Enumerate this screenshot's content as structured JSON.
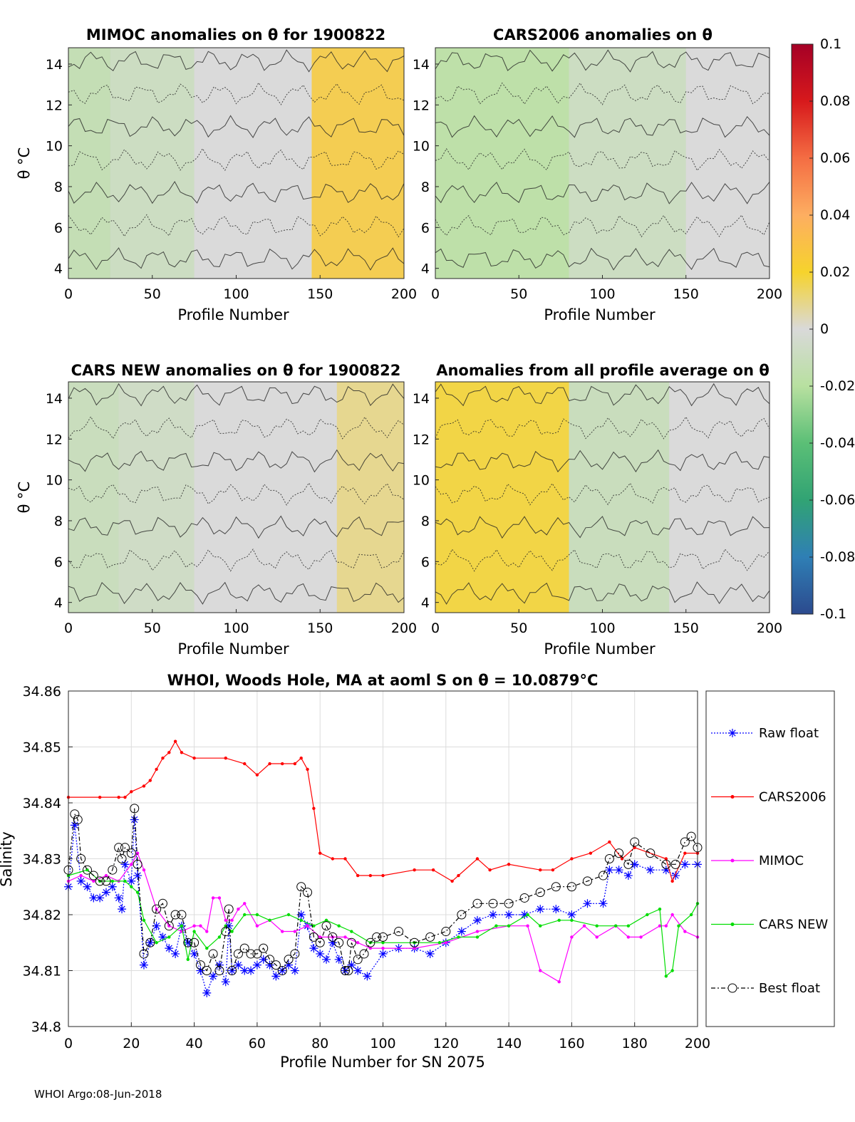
{
  "figure": {
    "footer": "WHOI Argo:08-Jun-2018"
  },
  "colorbar": {
    "ticks": [
      "0.1",
      "0.08",
      "0.06",
      "0.04",
      "0.02",
      "0",
      "-0.02",
      "-0.04",
      "-0.06",
      "-0.08",
      "-0.1"
    ],
    "range": [
      -0.1,
      0.1
    ],
    "colors": [
      "#a50026",
      "#d7191c",
      "#f46d43",
      "#fdae61",
      "#f6d32c",
      "#d9d9d9",
      "#b8e0a0",
      "#5bbf76",
      "#31a374",
      "#2f7fb5",
      "#2c4a8e"
    ]
  },
  "chart_data": [
    {
      "type": "heatmap",
      "title": "MIMOC anomalies on θ  for 1900822",
      "xlabel": "Profile Number",
      "ylabel": "θ °C",
      "xticks": [
        "0",
        "50",
        "100",
        "150",
        "200"
      ],
      "yticks": [
        "4",
        "6",
        "8",
        "10",
        "12",
        "14"
      ],
      "xlim": [
        0,
        200
      ],
      "ylim": [
        3.5,
        14.8
      ],
      "columns": [
        {
          "x0": 0,
          "x1": 25,
          "anomaly": -0.015
        },
        {
          "x0": 25,
          "x1": 75,
          "anomaly": -0.01
        },
        {
          "x0": 75,
          "x1": 145,
          "anomaly": 0.0
        },
        {
          "x0": 145,
          "x1": 200,
          "anomaly": 0.025
        }
      ]
    },
    {
      "type": "heatmap",
      "title": "CARS2006 anomalies on θ",
      "xlabel": "Profile Number",
      "ylabel": "",
      "xticks": [
        "0",
        "50",
        "100",
        "150",
        "200"
      ],
      "yticks": [
        "4",
        "6",
        "8",
        "10",
        "12",
        "14"
      ],
      "xlim": [
        0,
        200
      ],
      "ylim": [
        3.5,
        14.8
      ],
      "columns": [
        {
          "x0": 0,
          "x1": 80,
          "anomaly": -0.02
        },
        {
          "x0": 80,
          "x1": 150,
          "anomaly": -0.01
        },
        {
          "x0": 150,
          "x1": 200,
          "anomaly": 0.0
        }
      ]
    },
    {
      "type": "heatmap",
      "title": "CARS NEW anomalies on θ for 1900822",
      "xlabel": "Profile Number",
      "ylabel": "θ °C",
      "xticks": [
        "0",
        "50",
        "100",
        "150",
        "200"
      ],
      "yticks": [
        "4",
        "6",
        "8",
        "10",
        "12",
        "14"
      ],
      "xlim": [
        0,
        200
      ],
      "ylim": [
        3.5,
        14.8
      ],
      "columns": [
        {
          "x0": 0,
          "x1": 30,
          "anomaly": -0.012
        },
        {
          "x0": 30,
          "x1": 75,
          "anomaly": -0.008
        },
        {
          "x0": 75,
          "x1": 160,
          "anomaly": 0.0
        },
        {
          "x0": 160,
          "x1": 200,
          "anomaly": 0.01
        }
      ]
    },
    {
      "type": "heatmap",
      "title": "Anomalies from all profile average on θ",
      "xlabel": "Profile Number",
      "ylabel": "",
      "xticks": [
        "0",
        "50",
        "100",
        "150",
        "200"
      ],
      "yticks": [
        "4",
        "6",
        "8",
        "10",
        "12",
        "14"
      ],
      "xlim": [
        0,
        200
      ],
      "ylim": [
        3.5,
        14.8
      ],
      "columns": [
        {
          "x0": 0,
          "x1": 80,
          "anomaly": 0.02
        },
        {
          "x0": 80,
          "x1": 140,
          "anomaly": -0.012
        },
        {
          "x0": 140,
          "x1": 200,
          "anomaly": 0.0
        }
      ]
    },
    {
      "type": "line",
      "title": "WHOI, Woods Hole, MA at aoml S on θ = 10.0879°C",
      "xlabel": "Profile Number for SN 2075",
      "ylabel": "Salinity",
      "xlim": [
        0,
        200
      ],
      "ylim": [
        34.8,
        34.86
      ],
      "xticks": [
        "0",
        "20",
        "40",
        "60",
        "80",
        "100",
        "120",
        "140",
        "160",
        "180",
        "200"
      ],
      "yticks": [
        "34.8",
        "34.81",
        "34.82",
        "34.83",
        "34.84",
        "34.85",
        "34.86"
      ],
      "grid": true,
      "legend_position": "right-outside",
      "series": [
        {
          "name": "Raw float",
          "color": "#0000ff",
          "marker": "asterisk",
          "x": [
            0,
            2,
            4,
            6,
            8,
            10,
            12,
            14,
            16,
            17,
            18,
            20,
            21,
            22,
            24,
            26,
            28,
            30,
            32,
            34,
            36,
            38,
            40,
            42,
            44,
            46,
            48,
            50,
            51,
            52,
            54,
            56,
            58,
            60,
            62,
            64,
            66,
            68,
            70,
            72,
            74,
            76,
            78,
            80,
            82,
            84,
            86,
            88,
            90,
            92,
            95,
            100,
            105,
            110,
            115,
            120,
            125,
            130,
            135,
            140,
            145,
            150,
            155,
            160,
            165,
            170,
            172,
            175,
            178,
            180,
            185,
            190,
            193,
            196,
            200
          ],
          "y": [
            34.825,
            34.836,
            34.826,
            34.825,
            34.823,
            34.823,
            34.824,
            34.825,
            34.823,
            34.821,
            34.829,
            34.826,
            34.837,
            34.827,
            34.811,
            34.815,
            34.818,
            34.816,
            34.814,
            34.813,
            34.818,
            34.815,
            34.813,
            34.81,
            34.806,
            34.809,
            34.811,
            34.808,
            34.818,
            34.81,
            34.811,
            34.81,
            34.81,
            34.811,
            34.812,
            34.811,
            34.809,
            34.81,
            34.811,
            34.81,
            34.82,
            34.818,
            34.814,
            34.813,
            34.812,
            34.815,
            34.812,
            34.81,
            34.811,
            34.81,
            34.809,
            34.813,
            34.814,
            34.814,
            34.813,
            34.815,
            34.817,
            34.819,
            34.82,
            34.82,
            34.82,
            34.821,
            34.821,
            34.82,
            34.822,
            34.822,
            34.828,
            34.828,
            34.827,
            34.829,
            34.828,
            34.828,
            34.827,
            34.829,
            34.829
          ]
        },
        {
          "name": "CARS2006",
          "color": "#ff0000",
          "marker": "dot",
          "x": [
            0,
            10,
            16,
            18,
            20,
            24,
            26,
            28,
            30,
            32,
            34,
            36,
            40,
            50,
            56,
            60,
            64,
            68,
            72,
            74,
            76,
            78,
            80,
            84,
            88,
            92,
            96,
            100,
            110,
            116,
            122,
            124,
            130,
            134,
            140,
            150,
            154,
            160,
            166,
            172,
            176,
            180,
            190,
            192,
            196,
            200
          ],
          "y": [
            34.841,
            34.841,
            34.841,
            34.841,
            34.842,
            34.843,
            34.844,
            34.846,
            34.848,
            34.849,
            34.851,
            34.849,
            34.848,
            34.848,
            34.847,
            34.845,
            34.847,
            34.847,
            34.847,
            34.848,
            34.846,
            34.839,
            34.831,
            34.83,
            34.83,
            34.827,
            34.827,
            34.827,
            34.828,
            34.828,
            34.826,
            34.827,
            34.83,
            34.828,
            34.829,
            34.828,
            34.828,
            34.83,
            34.831,
            34.833,
            34.83,
            34.832,
            34.83,
            34.826,
            34.831,
            34.831
          ]
        },
        {
          "name": "MIMOC",
          "color": "#ff00ff",
          "marker": "dot",
          "x": [
            0,
            4,
            8,
            12,
            16,
            20,
            22,
            24,
            28,
            32,
            36,
            40,
            42,
            44,
            46,
            48,
            50,
            52,
            54,
            56,
            60,
            64,
            68,
            72,
            76,
            80,
            84,
            88,
            92,
            96,
            100,
            110,
            120,
            130,
            140,
            146,
            150,
            156,
            160,
            164,
            168,
            174,
            178,
            182,
            188,
            190,
            192,
            196,
            200
          ],
          "y": [
            34.826,
            34.827,
            34.826,
            34.827,
            34.826,
            34.829,
            34.831,
            34.828,
            34.821,
            34.818,
            34.817,
            34.818,
            34.818,
            34.817,
            34.823,
            34.823,
            34.819,
            34.819,
            34.821,
            34.822,
            34.818,
            34.819,
            34.817,
            34.817,
            34.818,
            34.816,
            34.816,
            34.816,
            34.815,
            34.814,
            34.814,
            34.814,
            34.815,
            34.817,
            34.818,
            34.818,
            34.81,
            34.808,
            34.816,
            34.818,
            34.816,
            34.818,
            34.816,
            34.816,
            34.818,
            34.818,
            34.82,
            34.817,
            34.816
          ]
        },
        {
          "name": "CARS NEW",
          "color": "#00dd00",
          "marker": "dot",
          "x": [
            0,
            6,
            10,
            14,
            18,
            20,
            22,
            24,
            28,
            32,
            36,
            38,
            40,
            44,
            48,
            50,
            52,
            56,
            60,
            64,
            70,
            74,
            78,
            82,
            86,
            90,
            96,
            100,
            110,
            118,
            124,
            130,
            136,
            140,
            146,
            150,
            156,
            160,
            168,
            174,
            178,
            184,
            188,
            190,
            192,
            194,
            198,
            200
          ],
          "y": [
            34.827,
            34.828,
            34.826,
            34.826,
            34.826,
            34.825,
            34.824,
            34.819,
            34.815,
            34.816,
            34.818,
            34.812,
            34.817,
            34.814,
            34.816,
            34.818,
            34.817,
            34.82,
            34.82,
            34.819,
            34.82,
            34.819,
            34.818,
            34.819,
            34.818,
            34.817,
            34.815,
            34.815,
            34.815,
            34.815,
            34.816,
            34.816,
            34.818,
            34.818,
            34.82,
            34.818,
            34.819,
            34.819,
            34.818,
            34.818,
            34.818,
            34.82,
            34.821,
            34.809,
            34.81,
            34.818,
            34.82,
            34.822
          ]
        },
        {
          "name": "Best float",
          "color": "#000000",
          "marker": "circle",
          "x": [
            0,
            2,
            3,
            4,
            6,
            8,
            10,
            12,
            14,
            16,
            17,
            18,
            20,
            21,
            22,
            24,
            26,
            28,
            30,
            32,
            34,
            36,
            38,
            40,
            42,
            44,
            46,
            48,
            50,
            51,
            52,
            54,
            56,
            58,
            60,
            62,
            64,
            66,
            68,
            70,
            72,
            74,
            76,
            78,
            80,
            82,
            84,
            86,
            88,
            89,
            90,
            92,
            94,
            96,
            98,
            100,
            105,
            110,
            115,
            120,
            125,
            130,
            135,
            140,
            145,
            150,
            155,
            160,
            165,
            170,
            172,
            175,
            178,
            180,
            185,
            190,
            193,
            196,
            198,
            200
          ],
          "y": [
            34.828,
            34.838,
            34.837,
            34.83,
            34.828,
            34.827,
            34.826,
            34.826,
            34.828,
            34.832,
            34.83,
            34.832,
            34.831,
            34.839,
            34.829,
            34.813,
            34.815,
            34.821,
            34.822,
            34.818,
            34.82,
            34.82,
            34.815,
            34.815,
            34.811,
            34.81,
            34.813,
            34.81,
            34.817,
            34.821,
            34.81,
            34.813,
            34.814,
            34.813,
            34.813,
            34.814,
            34.812,
            34.811,
            34.81,
            34.812,
            34.813,
            34.825,
            34.824,
            34.816,
            34.815,
            34.818,
            34.816,
            34.815,
            34.81,
            34.81,
            34.815,
            34.812,
            34.813,
            34.815,
            34.816,
            34.816,
            34.817,
            34.815,
            34.816,
            34.817,
            34.82,
            34.822,
            34.822,
            34.822,
            34.823,
            34.824,
            34.825,
            34.825,
            34.826,
            34.827,
            34.83,
            34.831,
            34.829,
            34.833,
            34.831,
            34.829,
            34.829,
            34.833,
            34.834,
            34.832
          ]
        }
      ]
    }
  ]
}
